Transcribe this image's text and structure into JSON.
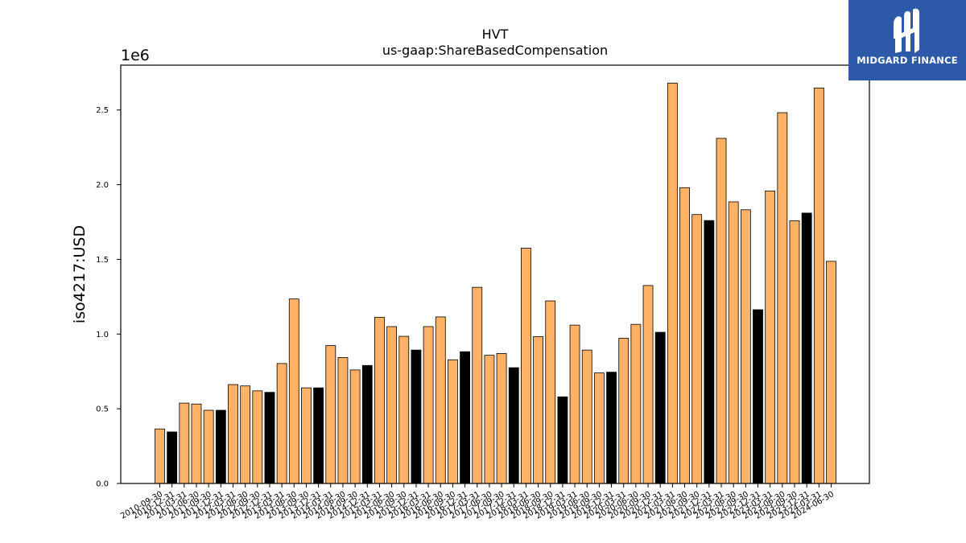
{
  "chart_data": {
    "type": "bar",
    "title": "HVT",
    "subtitle": "us-gaap:ShareBasedCompensation",
    "ylabel": "iso4217:USD",
    "xlabel": "",
    "y_multiplier_label": "1e6",
    "ylim": [
      0,
      2800000
    ],
    "yticks": [
      0,
      500000,
      1000000,
      1500000,
      2000000,
      2500000
    ],
    "ytick_labels": [
      "0.0",
      "0.5",
      "1.0",
      "1.5",
      "2.0",
      "2.5"
    ],
    "colors": {
      "quarterly": "#ffb266",
      "annual": "#000000",
      "edge": "#000000"
    },
    "grid": false,
    "legend": "none",
    "categories": [
      "2010-09-30",
      "2010-12-31",
      "2011-03-31",
      "2011-06-30",
      "2011-09-30",
      "2011-12-31",
      "2012-03-31",
      "2012-06-30",
      "2012-09-30",
      "2012-12-31",
      "2013-03-31",
      "2013-06-30",
      "2013-09-30",
      "2013-12-31",
      "2014-03-31",
      "2014-06-30",
      "2014-09-30",
      "2014-12-31",
      "2015-03-31",
      "2015-06-30",
      "2015-09-30",
      "2015-12-31",
      "2016-03-31",
      "2016-06-30",
      "2016-09-30",
      "2016-12-31",
      "2017-03-31",
      "2017-06-30",
      "2017-09-30",
      "2017-12-31",
      "2018-03-31",
      "2018-06-30",
      "2018-09-30",
      "2018-12-31",
      "2019-03-31",
      "2019-06-30",
      "2019-09-30",
      "2019-12-31",
      "2020-03-31",
      "2020-06-30",
      "2020-09-30",
      "2020-12-31",
      "2021-03-31",
      "2021-06-30",
      "2021-09-30",
      "2021-12-31",
      "2022-03-31",
      "2022-06-30",
      "2022-09-30",
      "2022-12-31",
      "2023-03-31",
      "2023-06-30",
      "2023-09-30",
      "2023-12-31",
      "2024-03-31",
      "2024-06-30"
    ],
    "values": [
      365000,
      345000,
      538000,
      532000,
      490000,
      490000,
      662000,
      653000,
      620000,
      610000,
      803000,
      1235000,
      640000,
      640000,
      923000,
      843000,
      760000,
      790000,
      1112000,
      1050000,
      985000,
      893000,
      1050000,
      1115000,
      828000,
      882000,
      1313000,
      858000,
      870000,
      775000,
      1575000,
      983000,
      1222000,
      580000,
      1060000,
      893000,
      740000,
      745000,
      972000,
      1065000,
      1325000,
      1012000,
      2680000,
      1980000,
      1800000,
      1760000,
      2310000,
      1885000,
      1832000,
      1163000,
      1958000,
      2482000,
      1758000,
      1810000,
      2647000,
      1487000
    ],
    "bar_kind": [
      "q",
      "a",
      "q",
      "q",
      "q",
      "a",
      "q",
      "q",
      "q",
      "a",
      "q",
      "q",
      "q",
      "a",
      "q",
      "q",
      "q",
      "a",
      "q",
      "q",
      "q",
      "a",
      "q",
      "q",
      "q",
      "a",
      "q",
      "q",
      "q",
      "a",
      "q",
      "q",
      "q",
      "a",
      "q",
      "q",
      "q",
      "a",
      "q",
      "q",
      "q",
      "a",
      "q",
      "q",
      "q",
      "a",
      "q",
      "q",
      "q",
      "a",
      "q",
      "q",
      "q",
      "a",
      "q",
      "q"
    ]
  },
  "logo": {
    "text": "MIDGARD FINANCE"
  }
}
